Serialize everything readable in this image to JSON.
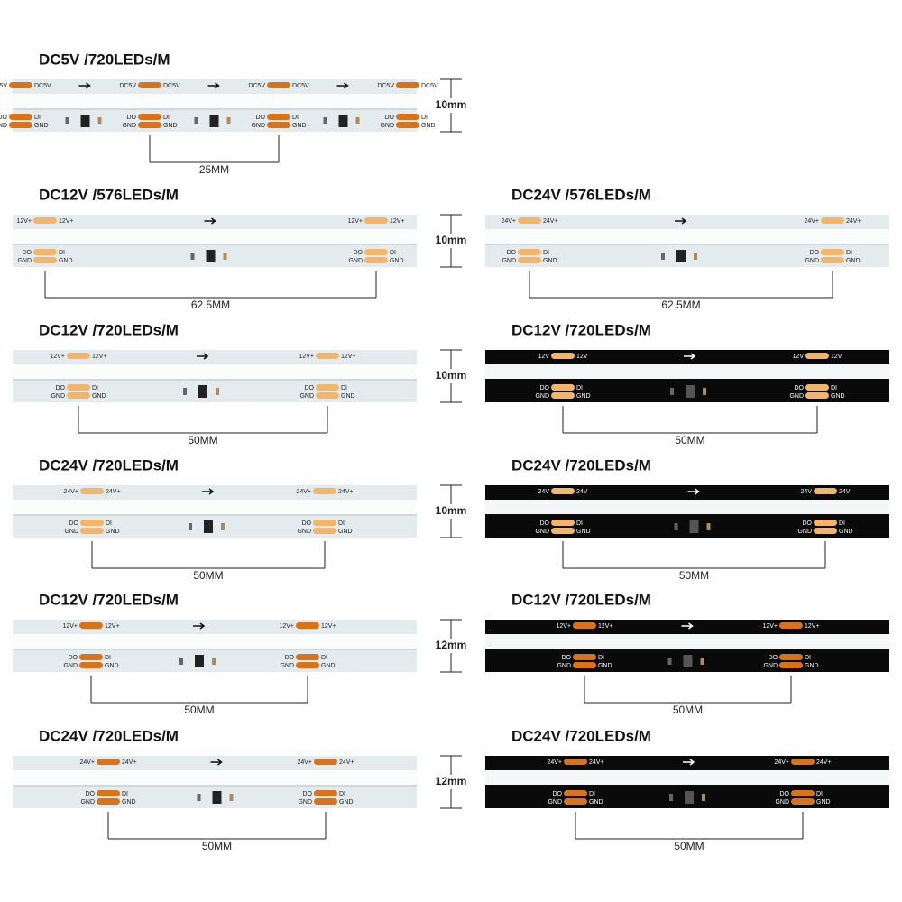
{
  "rows": [
    {
      "width": "10mm",
      "panels": [
        {
          "title": "DC5V /720LEDs/M",
          "pitch": "25MM",
          "power": "DC5V",
          "out": "DO",
          "in": "DI",
          "gnd": "GND",
          "pcb_color": "#e3ebee",
          "pad_color": "#d9731a"
        }
      ]
    },
    {
      "width": "10mm",
      "panels": [
        {
          "title": "DC12V /576LEDs/M",
          "pitch": "62.5MM",
          "power": "12V+",
          "out": "DO",
          "in": "DI",
          "gnd": "GND",
          "pcb_color": "#e3ebee",
          "pad_color": "#f2b56a"
        },
        {
          "title": "DC24V /576LEDs/M",
          "pitch": "62.5MM",
          "power": "24V+",
          "out": "DO",
          "in": "DI",
          "gnd": "GND",
          "pcb_color": "#e3ebee",
          "pad_color": "#f2b56a"
        }
      ]
    },
    {
      "width": "10mm",
      "panels": [
        {
          "title": "DC12V /720LEDs/M",
          "pitch": "50MM",
          "power": "12V+",
          "out": "DO",
          "in": "DI",
          "gnd": "GND",
          "pcb_color": "#e3ebee",
          "pad_color": "#f2b56a"
        },
        {
          "title": "DC12V /720LEDs/M",
          "pitch": "50MM",
          "power": "12V",
          "out": "DO",
          "in": "DI",
          "gnd": "GND",
          "pcb_color": "#0a0a0a",
          "pad_color": "#f2b56a"
        }
      ]
    },
    {
      "width": "10mm",
      "panels": [
        {
          "title": "DC24V /720LEDs/M",
          "pitch": "50MM",
          "power": "24V+",
          "out": "DO",
          "in": "DI",
          "gnd": "GND",
          "pcb_color": "#e3ebee",
          "pad_color": "#f2b56a"
        },
        {
          "title": "DC24V /720LEDs/M",
          "pitch": "50MM",
          "power": "24V",
          "out": "DO",
          "in": "DI",
          "gnd": "GND",
          "pcb_color": "#0a0a0a",
          "pad_color": "#f2b56a"
        }
      ]
    },
    {
      "width": "12mm",
      "panels": [
        {
          "title": "DC12V /720LEDs/M",
          "pitch": "50MM",
          "power": "12V+",
          "out": "DO",
          "in": "DI",
          "gnd": "GND",
          "pcb_color": "#e3ebee",
          "pad_color": "#d9731a"
        },
        {
          "title": "DC12V /720LEDs/M",
          "pitch": "50MM",
          "power": "12V+",
          "out": "DO",
          "in": "DI",
          "gnd": "GND",
          "pcb_color": "#0a0a0a",
          "pad_color": "#d9731a"
        }
      ]
    },
    {
      "width": "12mm",
      "panels": [
        {
          "title": "DC24V /720LEDs/M",
          "pitch": "50MM",
          "power": "24V+",
          "out": "DO",
          "in": "DI",
          "gnd": "GND",
          "pcb_color": "#e3ebee",
          "pad_color": "#d9731a"
        },
        {
          "title": "DC24V /720LEDs/M",
          "pitch": "50MM",
          "power": "24V+",
          "out": "DO",
          "in": "DI",
          "gnd": "GND",
          "pcb_color": "#0a0a0a",
          "pad_color": "#d9731a"
        }
      ]
    }
  ]
}
